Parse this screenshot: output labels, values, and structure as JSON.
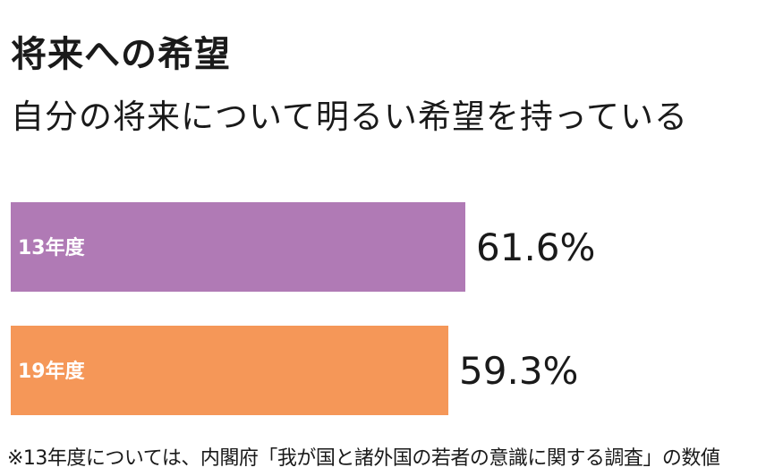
{
  "title": "将来への希望",
  "subtitle": "自分の将来について明るい希望を持っている",
  "footnote": "※13年度については、内閣府「我が国と諸外国の若者の意識に関する調査」の数値",
  "chart_data": {
    "type": "bar",
    "orientation": "horizontal",
    "categories": [
      "13年度",
      "19年度"
    ],
    "values": [
      61.6,
      59.3
    ],
    "value_labels": [
      "61.6%",
      "59.3%"
    ],
    "colors": [
      "#b07ab5",
      "#f59758"
    ],
    "unit": "%",
    "grid": false,
    "legend": "none"
  }
}
